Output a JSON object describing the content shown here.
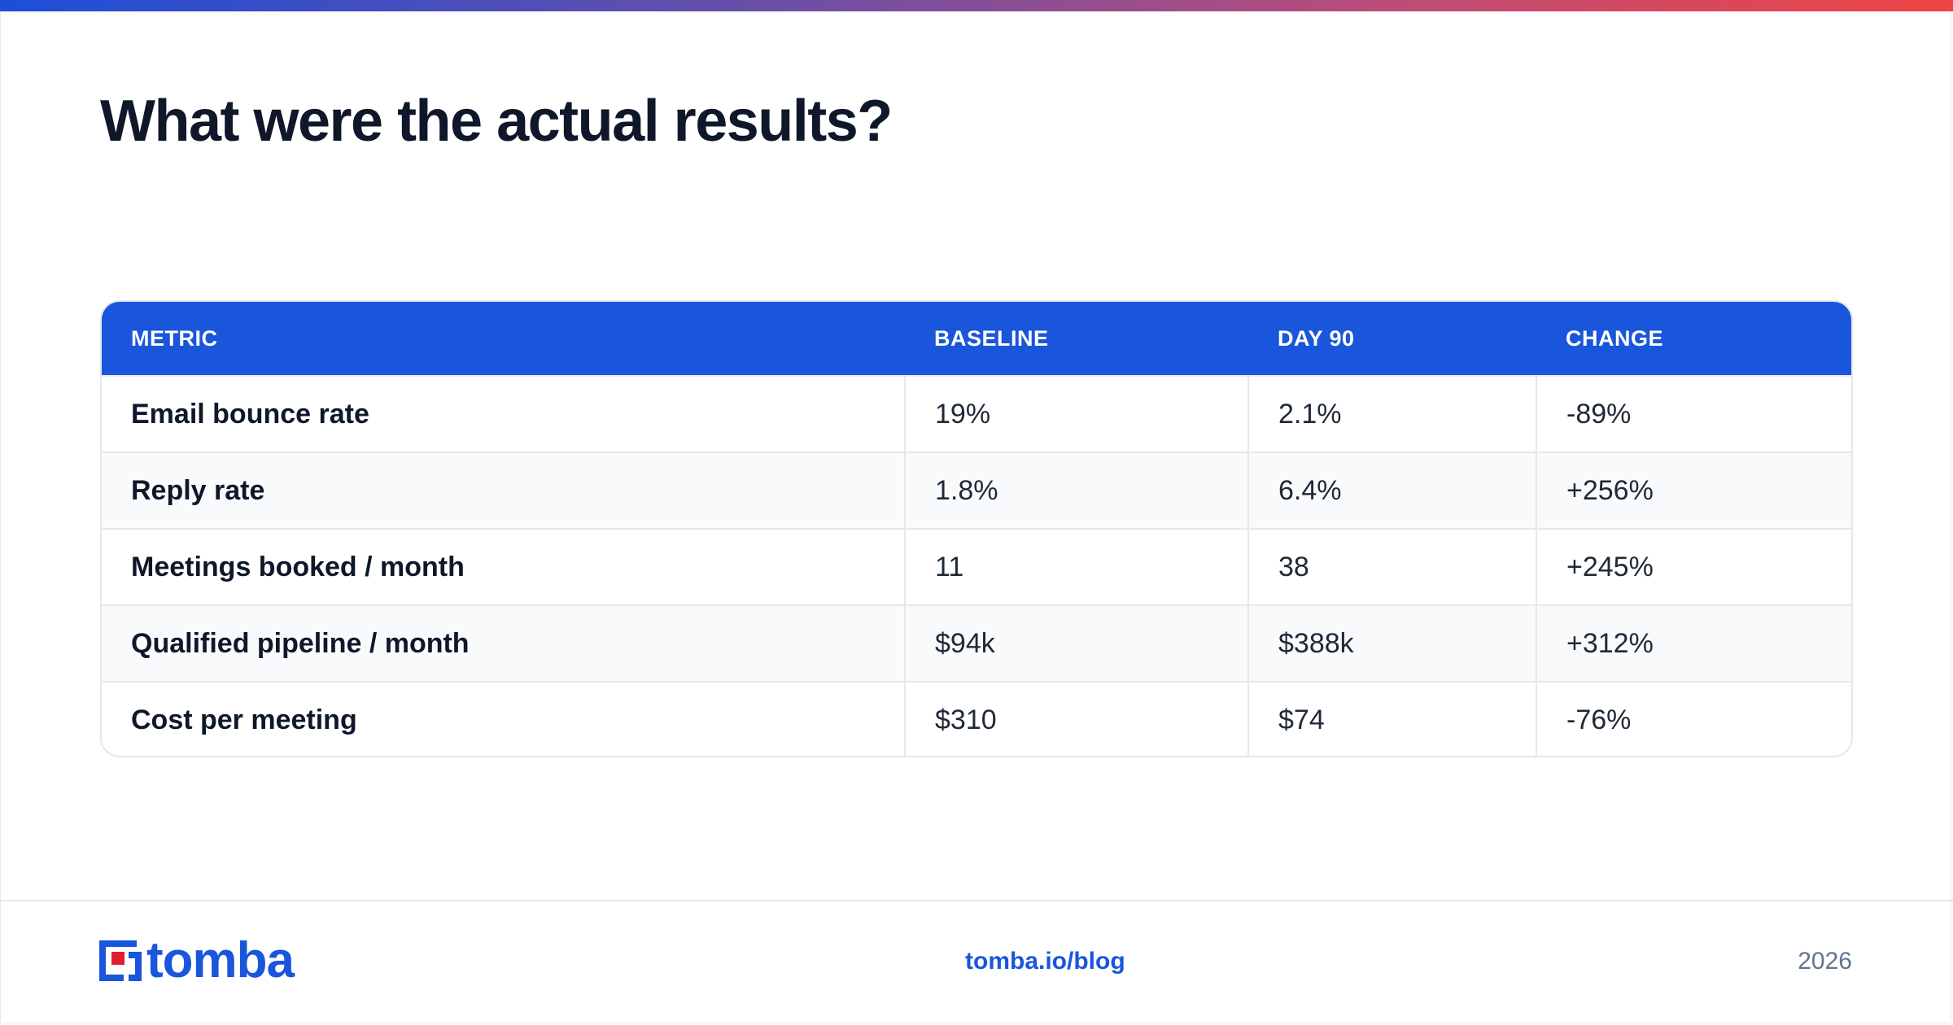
{
  "title": "What were the actual results?",
  "table": {
    "headers": [
      "METRIC",
      "BASELINE",
      "DAY 90",
      "CHANGE"
    ],
    "rows": [
      {
        "metric": "Email bounce rate",
        "baseline": "19%",
        "day90": "2.1%",
        "change": "-89%"
      },
      {
        "metric": "Reply rate",
        "baseline": "1.8%",
        "day90": "6.4%",
        "change": "+256%"
      },
      {
        "metric": "Meetings booked / month",
        "baseline": "11",
        "day90": "38",
        "change": "+245%"
      },
      {
        "metric": "Qualified pipeline / month",
        "baseline": "$94k",
        "day90": "$388k",
        "change": "+312%"
      },
      {
        "metric": "Cost per meeting",
        "baseline": "$310",
        "day90": "$74",
        "change": "-76%"
      }
    ]
  },
  "footer": {
    "logo_text": "tomba",
    "link": "tomba.io/blog",
    "year": "2026"
  },
  "colors": {
    "accent": "#1a56db",
    "logo_red": "#e11d2e",
    "title": "#0f172a"
  },
  "icons": {
    "logo": "tomba-logo-icon"
  }
}
